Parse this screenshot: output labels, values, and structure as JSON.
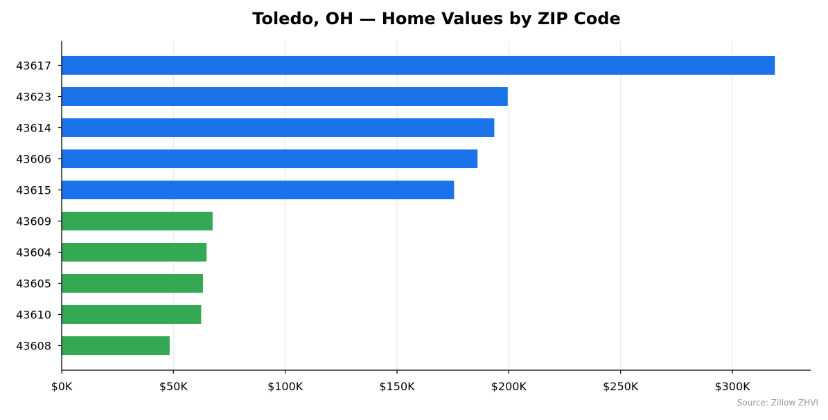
{
  "chart_data": {
    "type": "bar",
    "orientation": "horizontal",
    "title": "Toledo, OH — Home Values by ZIP Code",
    "xlabel": "",
    "ylabel": "",
    "categories": [
      "43617",
      "43623",
      "43614",
      "43606",
      "43615",
      "43609",
      "43604",
      "43605",
      "43610",
      "43608"
    ],
    "values": [
      319000,
      199500,
      193500,
      186000,
      175500,
      67500,
      64800,
      63200,
      62400,
      48300
    ],
    "bar_colors": [
      "#1a73e8",
      "#1a73e8",
      "#1a73e8",
      "#1a73e8",
      "#1a73e8",
      "#34a853",
      "#34a853",
      "#34a853",
      "#34a853",
      "#34a853"
    ],
    "xlim": [
      0,
      335000
    ],
    "xticks": [
      0,
      50000,
      100000,
      150000,
      200000,
      250000,
      300000
    ],
    "xtick_labels": [
      "$0K",
      "$50K",
      "$100K",
      "$150K",
      "$200K",
      "$250K",
      "$300K"
    ],
    "grid": "vertical",
    "legend": "none",
    "source_note": "Source: Zillow ZHVI"
  }
}
